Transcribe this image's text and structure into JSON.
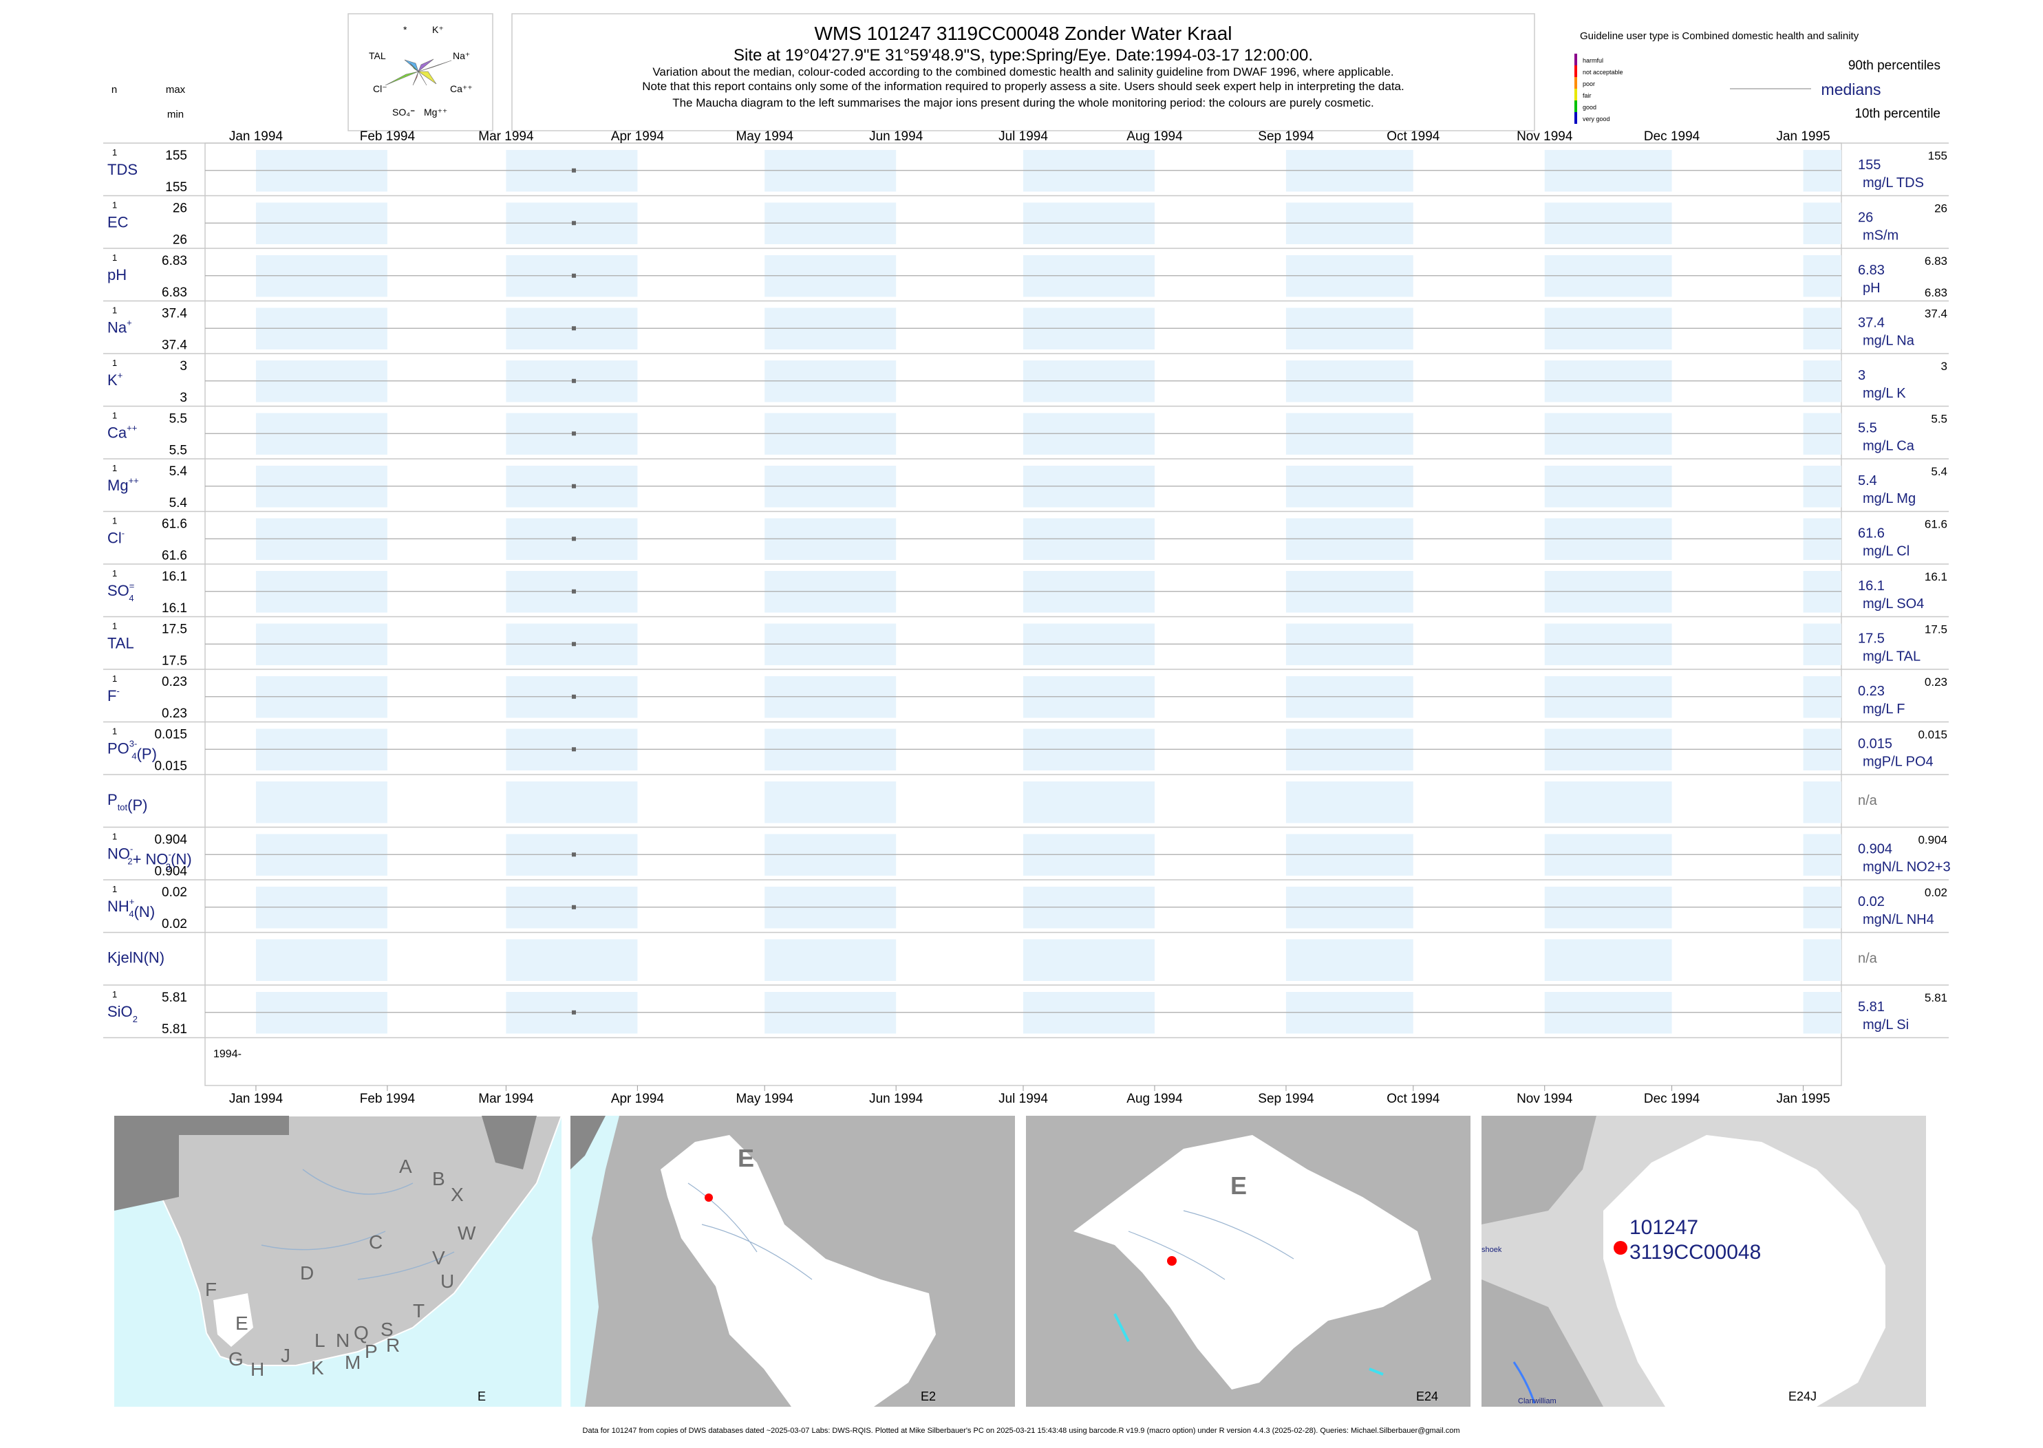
{
  "header": {
    "title": "WMS 101247 3119CC00048 Zonder Water Kraal",
    "subtitle": "Site at 19°04'27.9\"E 31°59'48.9\"S, type:Spring/Eye. Date:1994-03-17 12:00:00.",
    "note1": "Variation about the median,  colour-coded according to the combined domestic health and salinity guideline from DWAF 1996, where applicable.",
    "note2": "Note that this report contains only some of the information required to properly assess a site. Users should seek expert help in interpreting the data.",
    "note3": "The Maucha diagram to the left summarises the major ions present during the whole monitoring period: the colours are purely cosmetic."
  },
  "left_header": {
    "n": "n",
    "max": "max",
    "min": "min"
  },
  "maucha": {
    "labels": [
      "*",
      "K⁺",
      "TAL",
      "Na⁺",
      "Cl⁻",
      "Ca⁺⁺",
      "SO₄⁼",
      "Mg⁺⁺"
    ],
    "colors": [
      "#e8e84a",
      "#f0b030",
      "#d04848",
      "#7fd040",
      "#60b0e8",
      "#a070d0",
      "#40a040",
      "#e070c0"
    ]
  },
  "legend": {
    "guideline": "Guideline user type is Combined domestic health and salinity",
    "classes": [
      {
        "label": "harmful",
        "color": "#8b008b"
      },
      {
        "label": "not acceptable",
        "color": "#ff0000"
      },
      {
        "label": "poor",
        "color": "#ff8c00"
      },
      {
        "label": "fair",
        "color": "#e8e800"
      },
      {
        "label": "good",
        "color": "#00c000"
      },
      {
        "label": "very good",
        "color": "#0000c0"
      }
    ],
    "p90": "90th percentiles",
    "medians": "medians",
    "p10": "10th percentile"
  },
  "chart_data": {
    "type": "scatter",
    "x_ticks": [
      "Jan 1994",
      "Feb 1994",
      "Mar 1994",
      "Apr 1994",
      "May 1994",
      "Jun 1994",
      "Jul 1994",
      "Aug 1994",
      "Sep 1994",
      "Oct 1994",
      "Nov 1994",
      "Dec 1994",
      "Jan 1995"
    ],
    "x_range": [
      "1993-12-20",
      "1995-01-10"
    ],
    "sample_date": "1994-03-17",
    "bottom_label": "1994-",
    "variables": [
      {
        "name": "TDS",
        "n": "1",
        "max": "155",
        "min": "155",
        "value": 155,
        "median": "155",
        "unit": "mg/L TDS",
        "right_max": "155",
        "right_min": ""
      },
      {
        "name": "EC",
        "n": "1",
        "max": "26",
        "min": "26",
        "value": 26,
        "median": "26",
        "unit": "mS/m",
        "right_max": "26",
        "right_min": ""
      },
      {
        "name": "pH",
        "n": "1",
        "max": "6.83",
        "min": "6.83",
        "value": 6.83,
        "median": "6.83",
        "unit": "pH",
        "right_max": "6.83",
        "right_min": "6.83"
      },
      {
        "name": "Na",
        "sup": "+",
        "n": "1",
        "max": "37.4",
        "min": "37.4",
        "value": 37.4,
        "median": "37.4",
        "unit": "mg/L Na",
        "right_max": "37.4",
        "right_min": ""
      },
      {
        "name": "K",
        "sup": "+",
        "n": "1",
        "max": "3",
        "min": "3",
        "value": 3,
        "median": "3",
        "unit": "mg/L K",
        "right_max": "3",
        "right_min": ""
      },
      {
        "name": "Ca",
        "sup": "++",
        "n": "1",
        "max": "5.5",
        "min": "5.5",
        "value": 5.5,
        "median": "5.5",
        "unit": "mg/L Ca",
        "right_max": "5.5",
        "right_min": ""
      },
      {
        "name": "Mg",
        "sup": "++",
        "n": "1",
        "max": "5.4",
        "min": "5.4",
        "value": 5.4,
        "median": "5.4",
        "unit": "mg/L Mg",
        "right_max": "5.4",
        "right_min": ""
      },
      {
        "name": "Cl",
        "sup": "-",
        "n": "1",
        "max": "61.6",
        "min": "61.6",
        "value": 61.6,
        "median": "61.6",
        "unit": "mg/L Cl",
        "right_max": "61.6",
        "right_min": ""
      },
      {
        "name": "SO",
        "sub": "4",
        "sup": "=",
        "n": "1",
        "max": "16.1",
        "min": "16.1",
        "value": 16.1,
        "median": "16.1",
        "unit": "mg/L SO4",
        "right_max": "16.1",
        "right_min": ""
      },
      {
        "name": "TAL",
        "n": "1",
        "max": "17.5",
        "min": "17.5",
        "value": 17.5,
        "median": "17.5",
        "unit": "mg/L TAL",
        "right_max": "17.5",
        "right_min": ""
      },
      {
        "name": "F",
        "sup": "-",
        "n": "1",
        "max": "0.23",
        "min": "0.23",
        "value": 0.23,
        "median": "0.23",
        "unit": "mg/L F",
        "right_max": "0.23",
        "right_min": ""
      },
      {
        "name": "PO",
        "sub": "4",
        "sup": "3-",
        "tail": "(P)",
        "n": "1",
        "max": "0.015",
        "min": "0.015",
        "value": 0.015,
        "median": "0.015",
        "unit": "mgP/L PO4",
        "right_max": "0.015",
        "right_min": ""
      },
      {
        "name": "P",
        "sub": "tot",
        "tail": "(P)",
        "n": "",
        "max": "",
        "min": "",
        "value": null,
        "median": "n/a",
        "unit": "",
        "right_max": "",
        "right_min": ""
      },
      {
        "name": "NO",
        "sub": "2",
        "sup": "-",
        "tail": "+ NO",
        "sub2": "3",
        "sup2": "-",
        "tail2": "(N)",
        "n": "1",
        "max": "0.904",
        "min": "0.904",
        "value": 0.904,
        "median": "0.904",
        "unit": "mgN/L NO2+3",
        "right_max": "0.904",
        "right_min": ""
      },
      {
        "name": "NH",
        "sub": "4",
        "sup": "+",
        "tail": "(N)",
        "n": "1",
        "max": "0.02",
        "min": "0.02",
        "value": 0.02,
        "median": "0.02",
        "unit": "mgN/L NH4",
        "right_max": "0.02",
        "right_min": ""
      },
      {
        "name": "KjelN(N)",
        "n": "",
        "max": "",
        "min": "",
        "value": null,
        "median": "n/a",
        "unit": "",
        "right_max": "",
        "right_min": ""
      },
      {
        "name": "SiO",
        "sub": "2",
        "n": "1",
        "max": "5.81",
        "min": "5.81",
        "value": 5.81,
        "median": "5.81",
        "unit": "mg/L Si",
        "right_max": "5.81",
        "right_min": ""
      }
    ]
  },
  "maps": [
    {
      "corner": "E",
      "letters": [
        "A",
        "B",
        "X",
        "C",
        "W",
        "D",
        "V",
        "U",
        "T",
        "F",
        "E",
        "S",
        "R",
        "Q",
        "N",
        "P",
        "L",
        "M",
        "J",
        "K",
        "G",
        "H"
      ]
    },
    {
      "corner": "E2",
      "big": "E"
    },
    {
      "corner": "E24",
      "big": "E"
    },
    {
      "corner": "E24J",
      "site_id": "101247",
      "site_code": "3119CC00048",
      "place1": "shoek",
      "place2": "Clanwilliam"
    }
  ],
  "footer": "Data for 101247 from copies of DWS databases dated ~2025-03-07 Labs: DWS-RQIS. Plotted at Mike Silberbauer's PC on 2025-03-21 15:43:48 using barcode.R v19.9 (macro option) under R version 4.4.3 (2025-02-28). Queries: Michael.Silberbauer@gmail.com"
}
